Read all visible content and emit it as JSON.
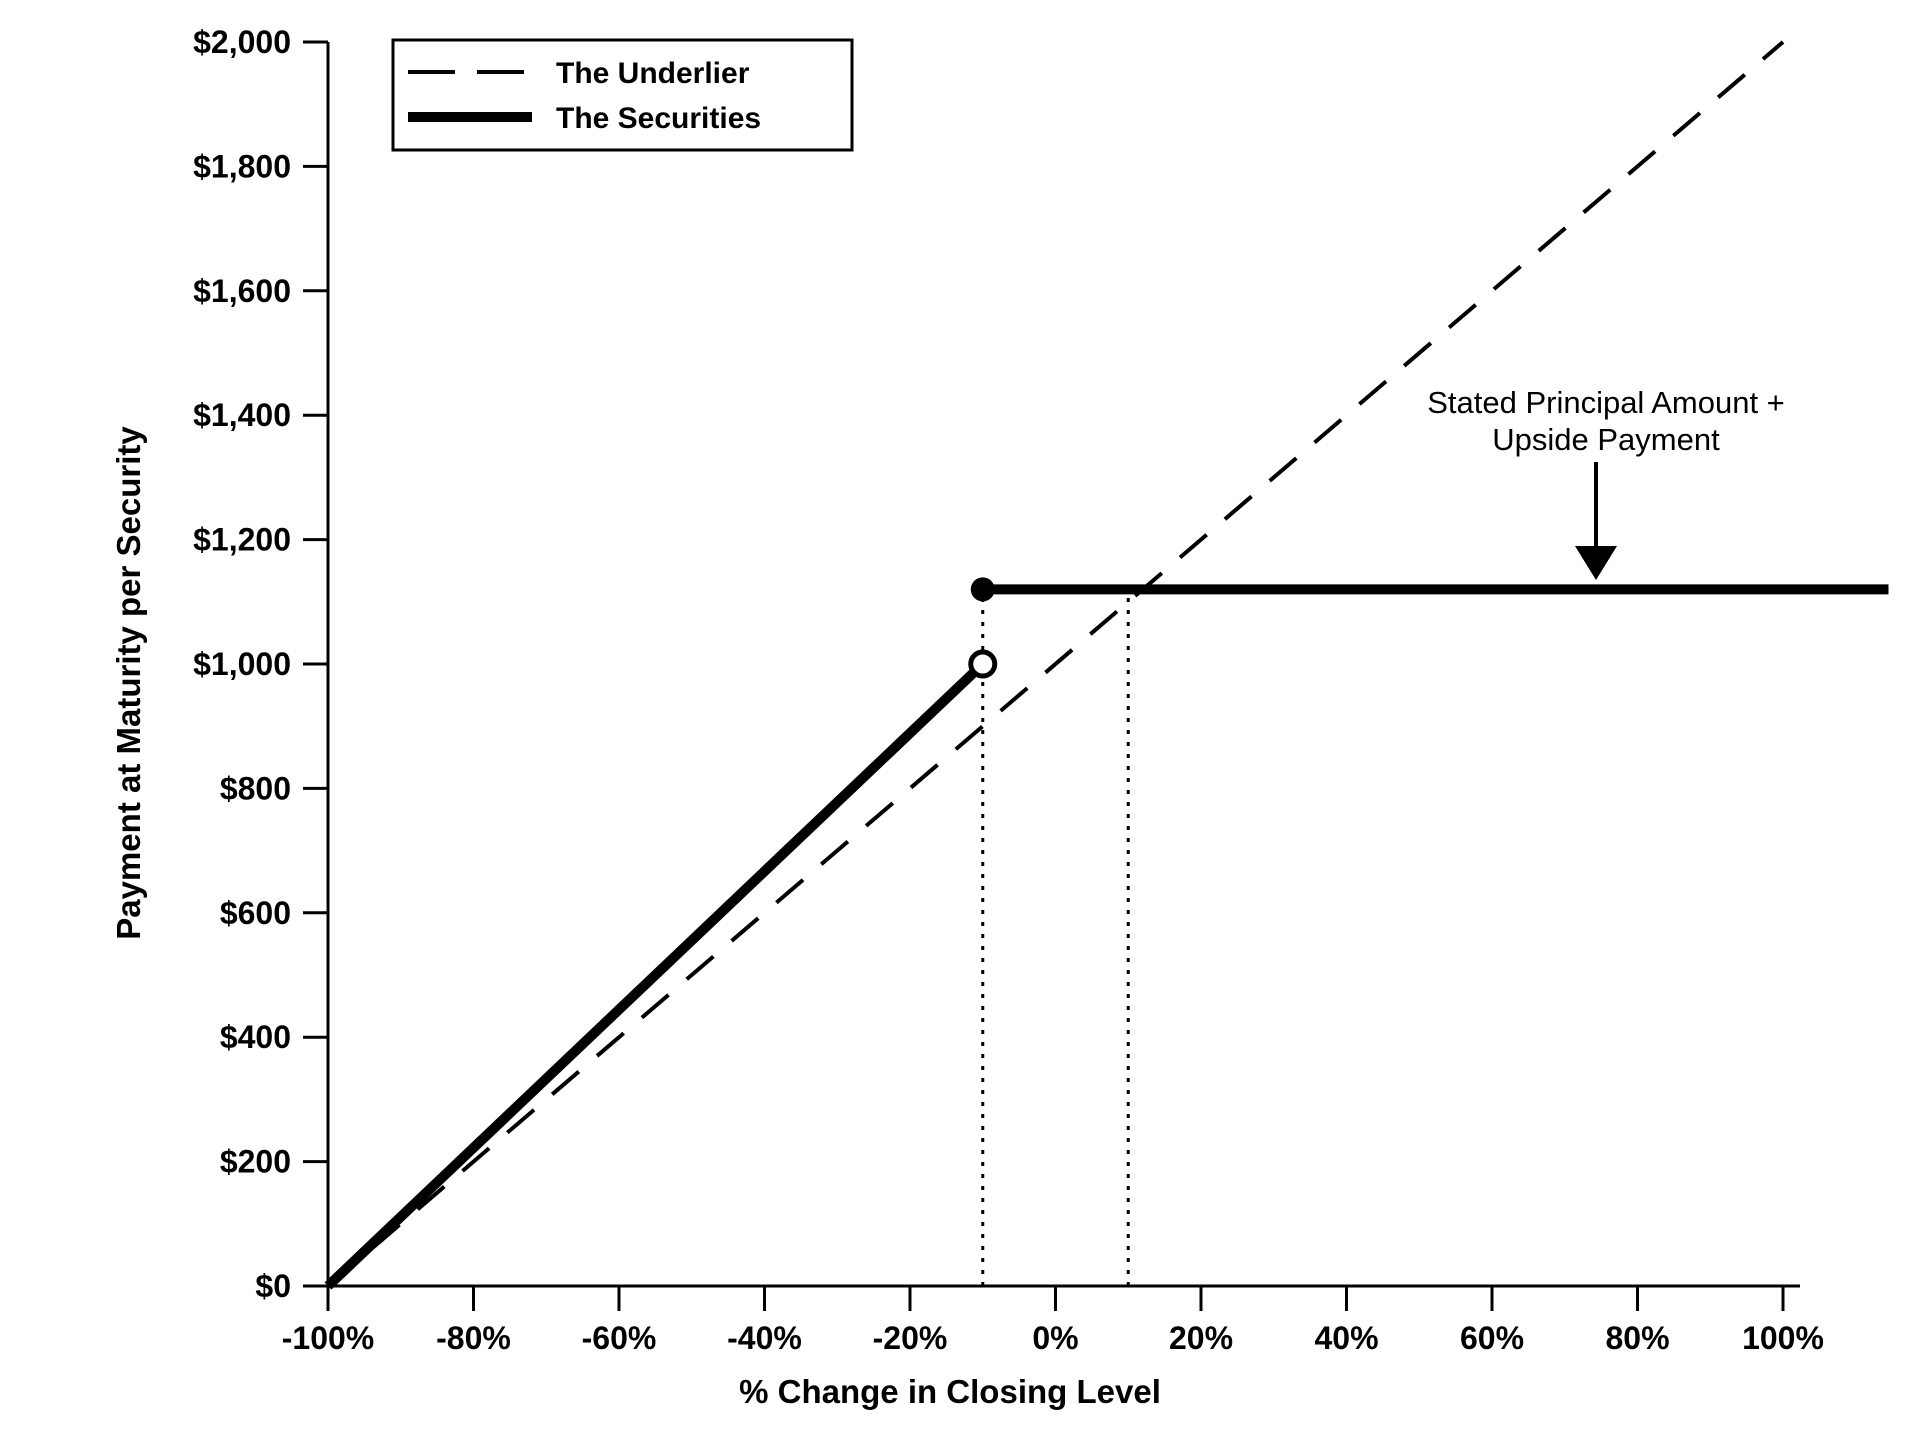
{
  "chart_data": {
    "type": "line",
    "title": "",
    "xlabel": "% Change in Closing Level",
    "ylabel": "Payment at Maturity per Security",
    "xlim": [
      -100,
      114.5
    ],
    "ylim": [
      0,
      2000
    ],
    "grid": false,
    "legend_position": "top-left",
    "x_ticks": [
      {
        "value": -100,
        "label": "-100%"
      },
      {
        "value": -80,
        "label": "-80%"
      },
      {
        "value": -60,
        "label": "-60%"
      },
      {
        "value": -40,
        "label": "-40%"
      },
      {
        "value": -20,
        "label": "-20%"
      },
      {
        "value": 0,
        "label": "0%"
      },
      {
        "value": 20,
        "label": "20%"
      },
      {
        "value": 40,
        "label": "40%"
      },
      {
        "value": 60,
        "label": "60%"
      },
      {
        "value": 80,
        "label": "80%"
      },
      {
        "value": 100,
        "label": "100%"
      }
    ],
    "y_ticks": [
      {
        "value": 0,
        "label": "$0"
      },
      {
        "value": 200,
        "label": "$200"
      },
      {
        "value": 400,
        "label": "$400"
      },
      {
        "value": 600,
        "label": "$600"
      },
      {
        "value": 800,
        "label": "$800"
      },
      {
        "value": 1000,
        "label": "$1,000"
      },
      {
        "value": 1200,
        "label": "$1,200"
      },
      {
        "value": 1400,
        "label": "$1,400"
      },
      {
        "value": 1600,
        "label": "$1,600"
      },
      {
        "value": 1800,
        "label": "$1,800"
      },
      {
        "value": 2000,
        "label": "$2,000"
      }
    ],
    "series": [
      {
        "name": "The Underlier",
        "style": "dashed",
        "points": [
          [
            -100,
            0
          ],
          [
            100,
            2000
          ]
        ]
      },
      {
        "name": "The Securities",
        "style": "thick-solid",
        "segments": [
          {
            "points": [
              [
                -100,
                0
              ],
              [
                -10,
                1000
              ]
            ],
            "end_marker": "open-circle"
          },
          {
            "points": [
              [
                -10,
                1120
              ],
              [
                114.5,
                1120
              ]
            ],
            "start_marker": "filled-circle"
          }
        ]
      }
    ],
    "guides": [
      {
        "x": -10,
        "top_value": 1120,
        "style": "dotted"
      },
      {
        "x": 10,
        "top_value": 1120,
        "style": "dotted"
      }
    ],
    "legend": {
      "entries": [
        {
          "label": "The Underlier",
          "style": "dashed"
        },
        {
          "label": "The Securities",
          "style": "thick-solid"
        }
      ]
    },
    "annotation": {
      "line1": "Stated Principal Amount +",
      "line2": "Upside Payment",
      "arrow": "down",
      "points_to": "securities capped payment line"
    },
    "colors": {
      "ink": "#000000",
      "background": "#ffffff"
    }
  }
}
